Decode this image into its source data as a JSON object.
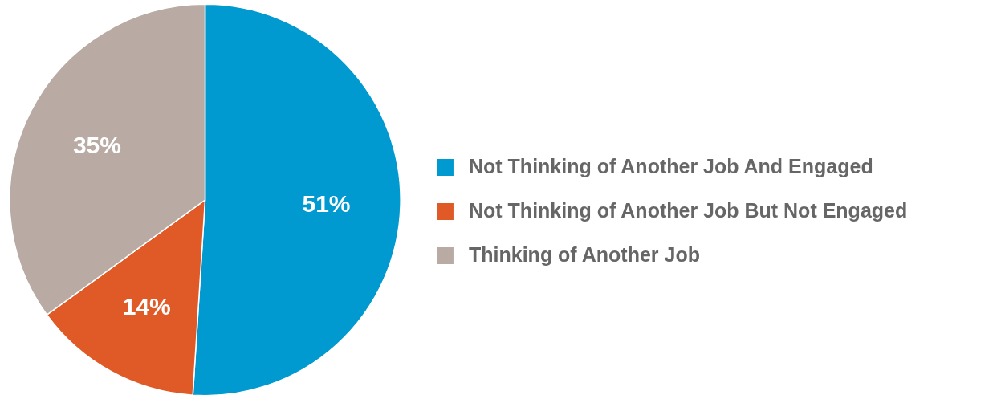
{
  "chart_data": {
    "type": "pie",
    "categories": [
      "Not Thinking of Another Job And Engaged",
      "Not Thinking of Another Job But Not Engaged",
      "Thinking of Another Job"
    ],
    "values": [
      51,
      14,
      35
    ],
    "colors": [
      "#0099d0",
      "#e05a27",
      "#b9aba4"
    ],
    "value_labels": [
      "51%",
      "14%",
      "35%"
    ],
    "legend": "right"
  }
}
